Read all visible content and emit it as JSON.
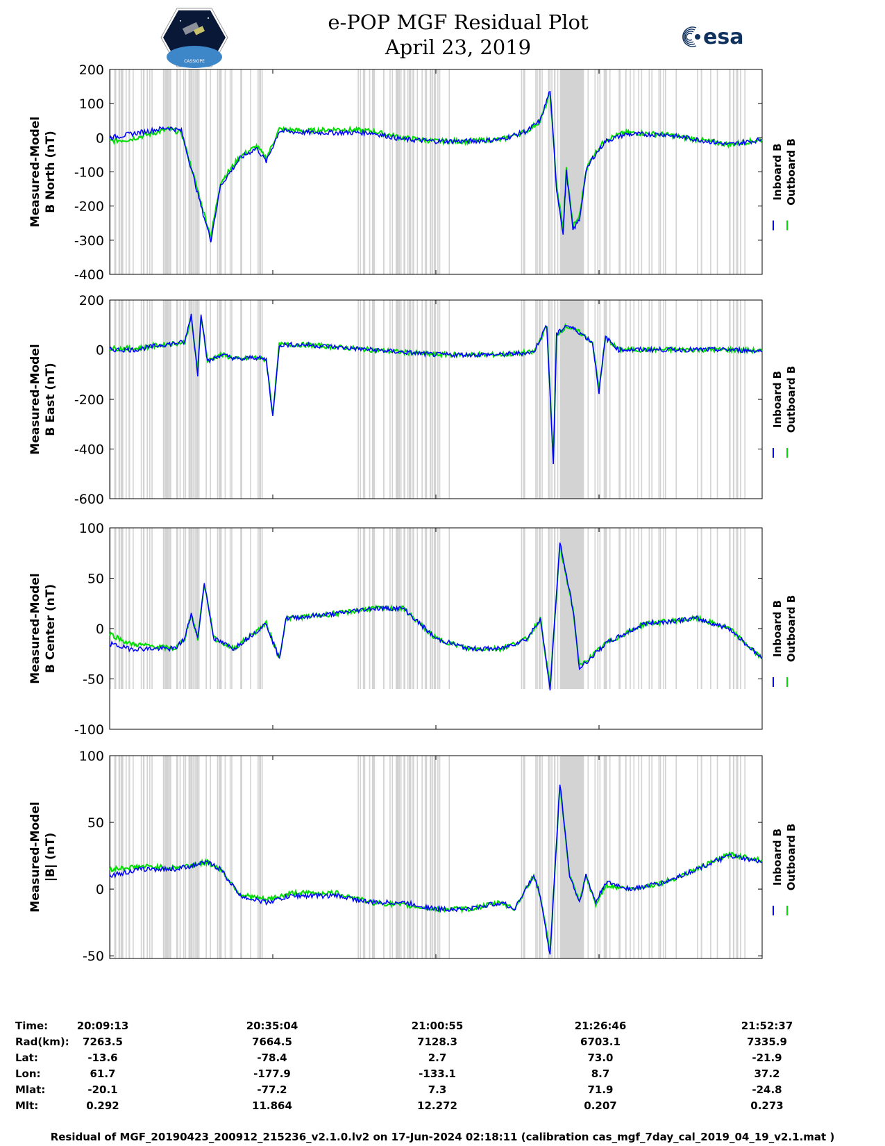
{
  "header": {
    "title": "e-POP MGF Residual Plot",
    "date": "April 23, 2019",
    "left_logo": "cassiope-mission-logo",
    "right_logo": "esa-logo",
    "right_logo_text": "esa",
    "left_logo_text": "CASSIOPE"
  },
  "colors": {
    "inboard": "#0000ff",
    "outboard": "#00dd00",
    "gap_shade": "#d3d3d3"
  },
  "chart_data": [
    {
      "type": "line",
      "ylabel_line1": "Measured-Model",
      "ylabel_line2": "B North (nT)",
      "ylim": [
        -400,
        200
      ],
      "yticks": [
        200,
        100,
        0,
        -100,
        -200,
        -300,
        -400
      ],
      "x": [
        0,
        0.03,
        0.06,
        0.09,
        0.11,
        0.125,
        0.14,
        0.155,
        0.17,
        0.2,
        0.225,
        0.24,
        0.26,
        0.3,
        0.35,
        0.4,
        0.45,
        0.5,
        0.55,
        0.6,
        0.64,
        0.66,
        0.675,
        0.685,
        0.695,
        0.7,
        0.71,
        0.72,
        0.73,
        0.74,
        0.76,
        0.79,
        0.85,
        0.9,
        0.95,
        1.0
      ],
      "series": [
        {
          "name": "Inboard B",
          "values": [
            0,
            10,
            20,
            30,
            20,
            -90,
            -200,
            -300,
            -140,
            -60,
            -30,
            -70,
            20,
            15,
            15,
            15,
            -5,
            -10,
            -10,
            -5,
            20,
            50,
            140,
            -150,
            -280,
            -100,
            -270,
            -240,
            -100,
            -60,
            -10,
            10,
            10,
            -5,
            -20,
            -5
          ]
        },
        {
          "name": "Outboard B",
          "values": [
            -10,
            -5,
            10,
            25,
            15,
            -85,
            -190,
            -290,
            -130,
            -55,
            -25,
            -60,
            25,
            20,
            25,
            20,
            0,
            -10,
            -10,
            -5,
            20,
            50,
            130,
            -140,
            -270,
            -90,
            -260,
            -230,
            -95,
            -55,
            -5,
            15,
            10,
            -5,
            -20,
            -5
          ]
        }
      ],
      "legend": [
        "Inboard B",
        "Outboard B"
      ]
    },
    {
      "type": "line",
      "ylabel_line1": "Measured-Model",
      "ylabel_line2": "B East (nT)",
      "ylim": [
        -600,
        200
      ],
      "yticks": [
        200,
        0,
        -200,
        -400,
        -600
      ],
      "x": [
        0,
        0.04,
        0.08,
        0.115,
        0.125,
        0.135,
        0.14,
        0.15,
        0.17,
        0.2,
        0.22,
        0.24,
        0.25,
        0.26,
        0.3,
        0.4,
        0.5,
        0.6,
        0.65,
        0.67,
        0.68,
        0.685,
        0.7,
        0.72,
        0.74,
        0.75,
        0.76,
        0.78,
        0.85,
        0.95,
        1.0
      ],
      "series": [
        {
          "name": "Inboard B",
          "values": [
            0,
            0,
            20,
            30,
            140,
            -100,
            150,
            -50,
            -20,
            -40,
            -30,
            -40,
            -270,
            20,
            20,
            0,
            -20,
            -20,
            -10,
            100,
            -460,
            60,
            100,
            70,
            30,
            -170,
            50,
            0,
            0,
            0,
            -5
          ]
        },
        {
          "name": "Outboard B",
          "values": [
            5,
            5,
            20,
            30,
            130,
            -90,
            140,
            -45,
            -20,
            -40,
            -30,
            -40,
            -260,
            20,
            20,
            0,
            -20,
            -20,
            -10,
            95,
            -440,
            60,
            95,
            70,
            30,
            -160,
            50,
            0,
            0,
            0,
            -5
          ]
        }
      ],
      "legend": [
        "Inboard B",
        "Outboard B"
      ]
    },
    {
      "type": "line",
      "ylabel_line1": "Measured-Model",
      "ylabel_line2": "B Center (nT)",
      "ylim": [
        -100,
        100
      ],
      "yticks": [
        100,
        50,
        0,
        -50,
        -100
      ],
      "x": [
        0,
        0.03,
        0.1,
        0.115,
        0.125,
        0.135,
        0.145,
        0.16,
        0.19,
        0.24,
        0.26,
        0.27,
        0.35,
        0.4,
        0.45,
        0.5,
        0.55,
        0.6,
        0.64,
        0.66,
        0.675,
        0.69,
        0.71,
        0.72,
        0.76,
        0.82,
        0.9,
        0.95,
        1.0
      ],
      "series": [
        {
          "name": "Inboard B",
          "values": [
            -15,
            -20,
            -20,
            -10,
            15,
            -10,
            45,
            -10,
            -20,
            5,
            -30,
            10,
            15,
            20,
            20,
            -10,
            -20,
            -20,
            -10,
            10,
            -60,
            85,
            20,
            -40,
            -15,
            5,
            10,
            0,
            -30
          ]
        },
        {
          "name": "Outboard B",
          "values": [
            -5,
            -15,
            -20,
            -10,
            15,
            -10,
            45,
            -10,
            -20,
            5,
            -30,
            10,
            15,
            20,
            20,
            -10,
            -20,
            -20,
            -10,
            10,
            -58,
            82,
            20,
            -38,
            -15,
            5,
            10,
            0,
            -30
          ]
        }
      ],
      "legend": [
        "Inboard B",
        "Outboard B"
      ]
    },
    {
      "type": "line",
      "ylabel_line1": "Measured-Model",
      "ylabel_line2": "|B| (nT)",
      "ylim": [
        -52,
        100
      ],
      "yticks": [
        100,
        50,
        0,
        -50
      ],
      "x": [
        0,
        0.05,
        0.1,
        0.15,
        0.17,
        0.2,
        0.24,
        0.28,
        0.35,
        0.4,
        0.45,
        0.5,
        0.55,
        0.6,
        0.62,
        0.65,
        0.66,
        0.675,
        0.69,
        0.705,
        0.72,
        0.73,
        0.745,
        0.76,
        0.8,
        0.85,
        0.9,
        0.95,
        1.0
      ],
      "series": [
        {
          "name": "Inboard B",
          "values": [
            10,
            15,
            15,
            20,
            15,
            -5,
            -10,
            -5,
            -5,
            -10,
            -10,
            -15,
            -15,
            -10,
            -15,
            10,
            -5,
            -50,
            80,
            10,
            -10,
            10,
            -10,
            5,
            0,
            5,
            15,
            25,
            20
          ]
        },
        {
          "name": "Outboard B",
          "values": [
            15,
            17,
            16,
            20,
            15,
            -4,
            -8,
            -3,
            -3,
            -10,
            -12,
            -15,
            -15,
            -10,
            -15,
            10,
            -5,
            -48,
            78,
            10,
            -10,
            10,
            -12,
            3,
            0,
            5,
            15,
            26,
            22
          ]
        }
      ],
      "legend": [
        "Inboard B",
        "Outboard B"
      ]
    }
  ],
  "info": {
    "labels": [
      "Time:",
      "Rad(km):",
      "Lat:",
      "Lon:",
      "Mlat:",
      "Mlt:"
    ],
    "columns": [
      [
        "20:09:13",
        "7263.5",
        "-13.6",
        "61.7",
        "-20.1",
        "0.292"
      ],
      [
        "20:35:04",
        "7664.5",
        "-78.4",
        "-177.9",
        "-77.2",
        "11.864"
      ],
      [
        "21:00:55",
        "7128.3",
        "2.7",
        "-133.1",
        "7.3",
        "12.272"
      ],
      [
        "21:26:46",
        "6703.1",
        "73.0",
        "8.7",
        "71.9",
        "0.207"
      ],
      [
        "21:52:37",
        "7335.9",
        "-21.9",
        "37.2",
        "-24.8",
        "0.273"
      ]
    ]
  },
  "footer": "Residual of MGF_20190423_200912_215236_v2.1.0.lv2 on 17-Jun-2024 02:18:11 (calibration cas_mgf_7day_cal_2019_04_19_v2.1.mat )"
}
